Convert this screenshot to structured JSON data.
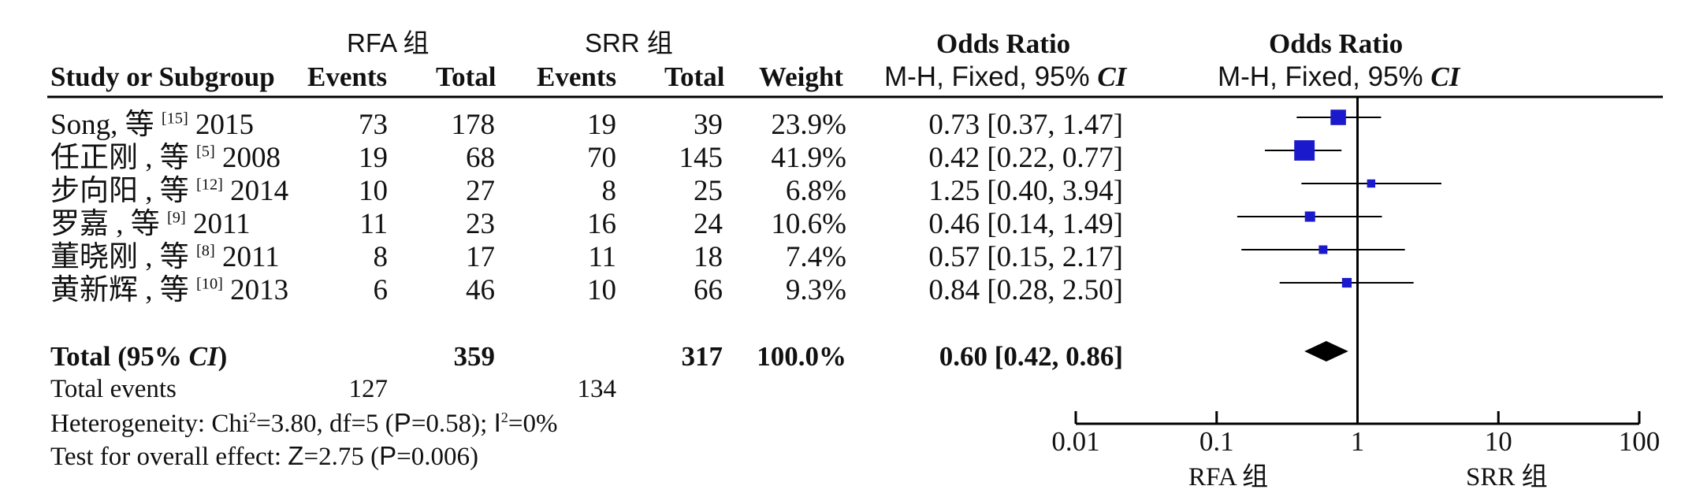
{
  "chart_data": {
    "type": "forest",
    "scale": "log",
    "xlim": [
      0.01,
      100
    ],
    "xticks": [
      "0.01",
      "0.1",
      "1",
      "10",
      "100"
    ],
    "xtick_values": [
      0.01,
      0.1,
      1,
      10,
      100
    ],
    "favours_left": "RFA 组",
    "favours_right": "SRR 组",
    "group1": "RFA 组",
    "group2": "SRR 组",
    "columns": {
      "study": "Study or Subgroup",
      "events": "Events",
      "total": "Total",
      "weight": "Weight",
      "or_title": "Odds Ratio",
      "or_method_prefix": "M-H, Fixed, 95% ",
      "or_method_ci": "CI"
    },
    "studies": [
      {
        "name": "Song, 等 ",
        "ref": "[15]",
        "year": " 2015",
        "e1": "73",
        "t1": "178",
        "e2": "19",
        "t2": "39",
        "weight": "23.9%",
        "or_text": "0.73 [0.37, 1.47]",
        "or": 0.73,
        "lo": 0.37,
        "hi": 1.47,
        "w": 23.9
      },
      {
        "name": "任正刚 , 等 ",
        "ref": "[5]",
        "year": " 2008",
        "e1": "19",
        "t1": "68",
        "e2": "70",
        "t2": "145",
        "weight": "41.9%",
        "or_text": "0.42 [0.22, 0.77]",
        "or": 0.42,
        "lo": 0.22,
        "hi": 0.77,
        "w": 41.9
      },
      {
        "name": "步向阳 , 等 ",
        "ref": "[12]",
        "year": " 2014",
        "e1": "10",
        "t1": "27",
        "e2": "8",
        "t2": "25",
        "weight": "6.8%",
        "or_text": "1.25 [0.40, 3.94]",
        "or": 1.25,
        "lo": 0.4,
        "hi": 3.94,
        "w": 6.8
      },
      {
        "name": "罗嘉 , 等 ",
        "ref": "[9]",
        "year": " 2011",
        "e1": "11",
        "t1": "23",
        "e2": "16",
        "t2": "24",
        "weight": "10.6%",
        "or_text": "0.46 [0.14, 1.49]",
        "or": 0.46,
        "lo": 0.14,
        "hi": 1.49,
        "w": 10.6
      },
      {
        "name": "董晓刚 , 等 ",
        "ref": "[8]",
        "year": " 2011",
        "e1": "8",
        "t1": "17",
        "e2": "11",
        "t2": "18",
        "weight": "7.4%",
        "or_text": "0.57 [0.15, 2.17]",
        "or": 0.57,
        "lo": 0.15,
        "hi": 2.17,
        "w": 7.4
      },
      {
        "name": "黄新辉 , 等 ",
        "ref": "[10]",
        "year": " 2013",
        "e1": "6",
        "t1": "46",
        "e2": "10",
        "t2": "66",
        "weight": "9.3%",
        "or_text": "0.84 [0.28, 2.50]",
        "or": 0.84,
        "lo": 0.28,
        "hi": 2.5,
        "w": 9.3
      }
    ],
    "total": {
      "label_prefix": "Total (95% ",
      "label_ci": "CI",
      "label_suffix": ")",
      "t1": "359",
      "t2": "317",
      "weight": "100.0%",
      "or_text": "0.60 [0.42, 0.86]",
      "or": 0.6,
      "lo": 0.42,
      "hi": 0.86
    },
    "total_events": {
      "label": "Total events",
      "e1": "127",
      "e2": "134"
    },
    "heterogeneity": {
      "prefix": "Heterogeneity: Chi",
      "sup1": "2",
      "mid1": "=3.80, df=5 (",
      "p": "P",
      "mid2": "=0.58); ",
      "i": "I",
      "sup2": "2",
      "end": "=0%"
    },
    "overall_effect": {
      "prefix": "Test for overall effect: ",
      "z": "Z",
      "mid": "=2.75 (",
      "p": "P",
      "end": "=0.006)"
    },
    "colors": {
      "box": "#1a1acc",
      "diamond": "#000000",
      "line": "#000000"
    }
  }
}
